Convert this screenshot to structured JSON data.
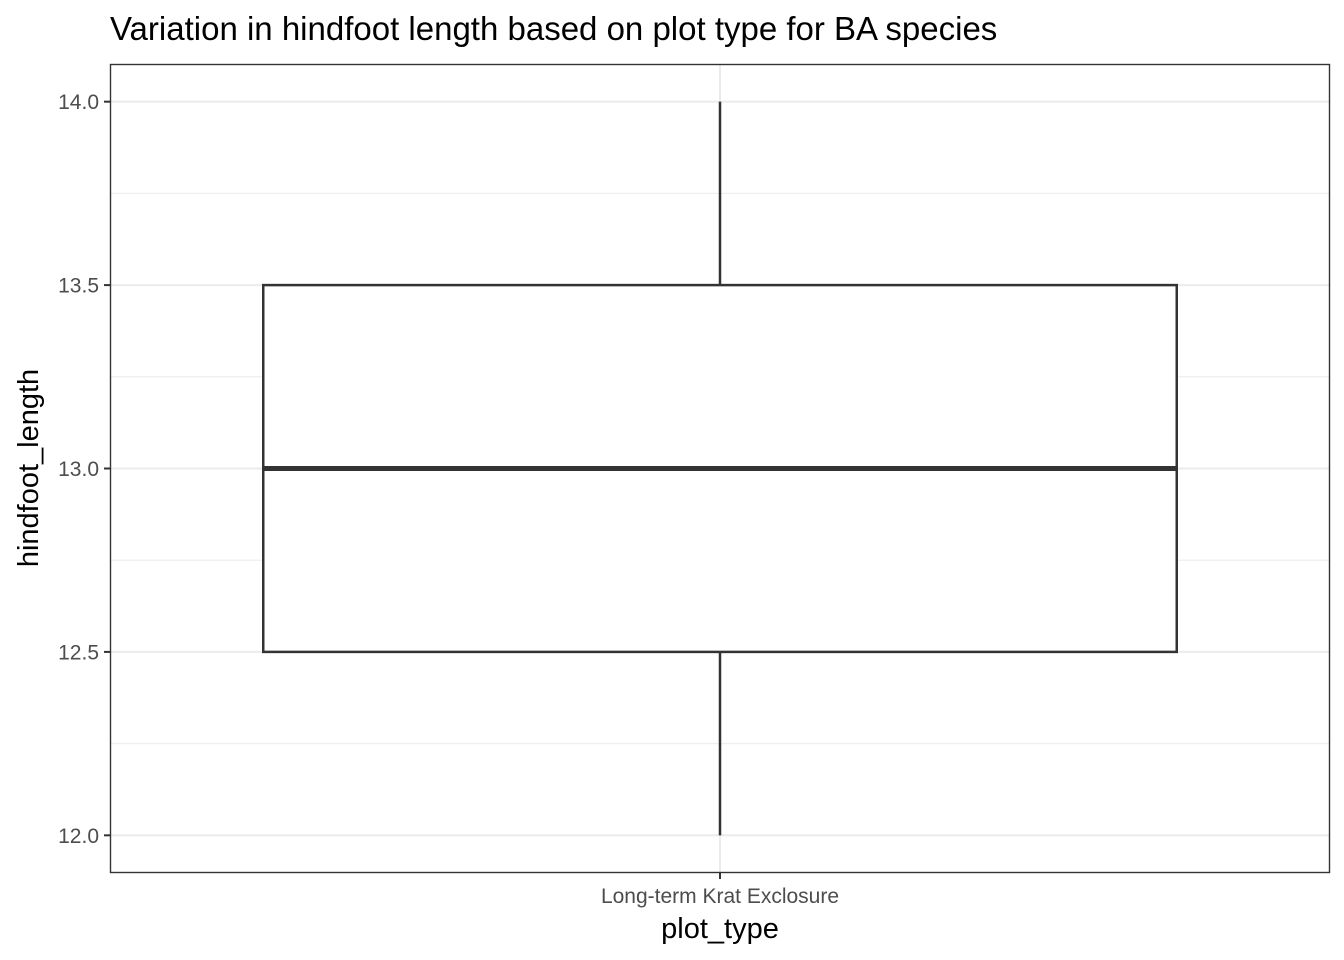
{
  "chart_data": {
    "type": "boxplot",
    "title": "Variation in hindfoot length based on plot type for BA species",
    "xlabel": "plot_type",
    "ylabel": "hindfoot_length",
    "categories": [
      "Long-term Krat Exclosure"
    ],
    "boxes": [
      {
        "category": "Long-term Krat Exclosure",
        "whisker_low": 12.0,
        "q1": 12.5,
        "median": 13.0,
        "q3": 13.5,
        "whisker_high": 14.0
      }
    ],
    "ylim": [
      11.9,
      14.1
    ],
    "y_ticks": [
      12.0,
      12.5,
      13.0,
      13.5,
      14.0
    ],
    "y_tick_labels": [
      "12.0",
      "12.5",
      "13.0",
      "13.5",
      "14.0"
    ],
    "grid": true,
    "theme": "bw"
  }
}
